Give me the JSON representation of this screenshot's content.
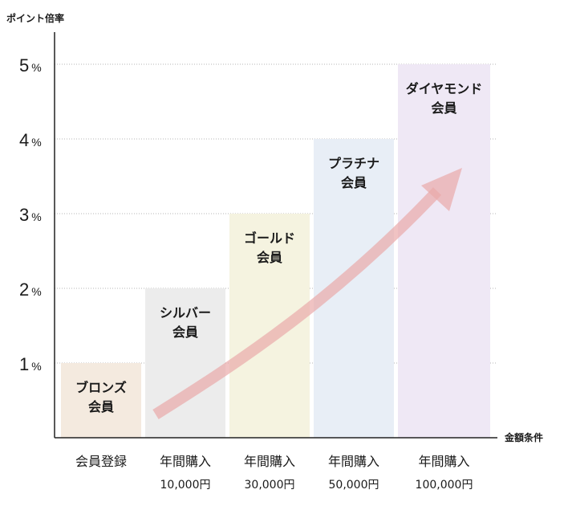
{
  "chart_data": {
    "type": "bar",
    "ylabel": "ポイント倍率",
    "xlabel": "金額条件",
    "ylim": [
      0,
      5.5
    ],
    "yticks": [
      1,
      2,
      3,
      4,
      5
    ],
    "ytick_unit": "%",
    "grid": true,
    "categories": [
      {
        "tier": "ブロンズ会員",
        "tier_lines": [
          "ブロンズ",
          "会員"
        ],
        "condition": "会員登録",
        "amount": "",
        "color": "#f4eadf"
      },
      {
        "tier": "シルバー会員",
        "tier_lines": [
          "シルバー",
          "会員"
        ],
        "condition": "年間購入",
        "amount": "10,000円",
        "color": "#ececec"
      },
      {
        "tier": "ゴールド会員",
        "tier_lines": [
          "ゴールド",
          "会員"
        ],
        "condition": "年間購入",
        "amount": "30,000円",
        "color": "#f5f3e0"
      },
      {
        "tier": "プラチナ会員",
        "tier_lines": [
          "プラチナ",
          "会員"
        ],
        "condition": "年間購入",
        "amount": "50,000円",
        "color": "#e8eef6"
      },
      {
        "tier": "ダイヤモンド会員",
        "tier_lines": [
          "ダイヤモンド",
          "会員"
        ],
        "condition": "年間購入",
        "amount": "100,000円",
        "color": "#efe8f5"
      }
    ],
    "values": [
      1,
      2,
      3,
      4,
      5
    ],
    "arrow_color": "#e9a9a9"
  }
}
